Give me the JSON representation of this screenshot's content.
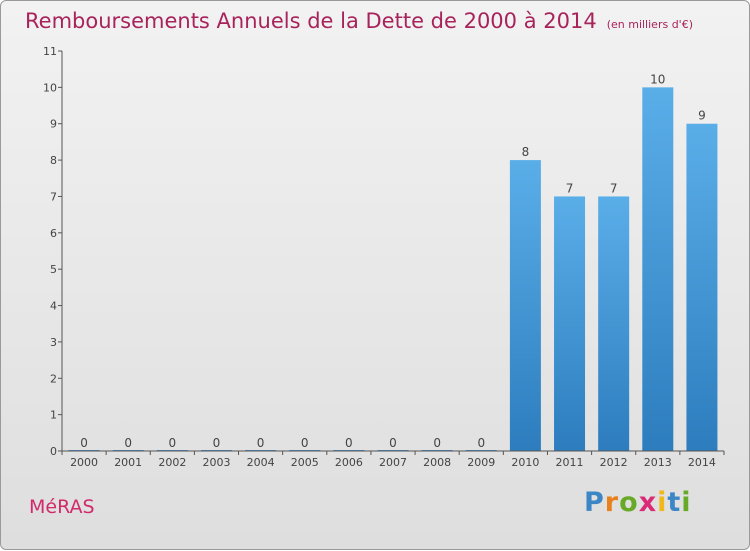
{
  "header": {
    "title": "Remboursements Annuels de la Dette de 2000 à 2014",
    "subtitle": "(en milliers d'€)"
  },
  "footer": {
    "commune": "MéRAS",
    "logo_text": "Proxiti"
  },
  "colors": {
    "title": "#a8235c",
    "bar_light": "#5aaee8",
    "bar_dark": "#2d7dbe",
    "background_top": "#f2f2f2",
    "background_bottom": "#dedede"
  },
  "chart_data": {
    "type": "bar",
    "title": "Remboursements Annuels de la Dette de 2000 à 2014",
    "subtitle": "(en milliers d'€)",
    "categories": [
      "2000",
      "2001",
      "2002",
      "2003",
      "2004",
      "2005",
      "2006",
      "2007",
      "2008",
      "2009",
      "2010",
      "2011",
      "2012",
      "2013",
      "2014"
    ],
    "values": [
      0,
      0,
      0,
      0,
      0,
      0,
      0,
      0,
      0,
      0,
      8,
      7,
      7,
      10,
      9
    ],
    "data_labels": [
      "0",
      "0",
      "0",
      "0",
      "0",
      "0",
      "0",
      "0",
      "0",
      "0",
      "8",
      "7",
      "7",
      "10",
      "9"
    ],
    "y_ticks": [
      0,
      1,
      2,
      3,
      4,
      5,
      6,
      7,
      8,
      9,
      10,
      11
    ],
    "ylim": [
      0,
      11
    ],
    "xlabel": "",
    "ylabel": "",
    "grid": false,
    "legend": "none"
  }
}
